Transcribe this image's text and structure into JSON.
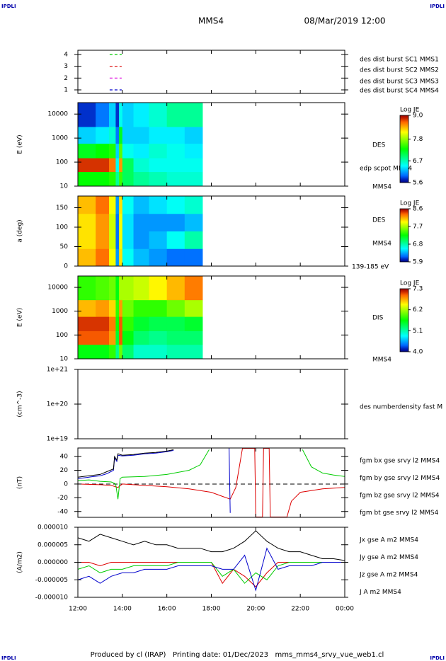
{
  "header": {
    "logo_left": "IPDLI",
    "logo_right": "IPDLI",
    "title": "MMS4",
    "date": "08/Mar/2019 12:00"
  },
  "footer": {
    "logo_left": "IPDLI",
    "logo_right": "IPDLI",
    "text": "Produced by cl (IRAP)   Printing date: 01/Dec/2023   mms_mms4_srvy_vue_web1.cl"
  },
  "chart_data": [
    {
      "type": "line",
      "xlim": [
        12,
        24
      ],
      "ylim": [
        0.7,
        4.36
      ],
      "yticks": [
        1,
        2,
        3,
        4
      ],
      "series": [
        {
          "name": "des dist burst SC1 MMS1",
          "color": "#0000cc",
          "x": [
            13.43,
            13.97
          ],
          "values": [
            1,
            1
          ]
        },
        {
          "name": "des dist burst SC2 MMS2",
          "color": "#dd00dd",
          "x": [
            13.43,
            13.97
          ],
          "values": [
            2,
            2
          ]
        },
        {
          "name": "des dist burst SC3 MMS3",
          "color": "#dd0000",
          "x": [
            13.43,
            13.97
          ],
          "values": [
            3,
            3
          ]
        },
        {
          "name": "des dist burst SC4 MMS4",
          "color": "#00cc00",
          "x": [
            13.43,
            13.97
          ],
          "values": [
            4,
            4
          ]
        }
      ]
    },
    {
      "type": "heatmap",
      "ylabel": "E (eV)",
      "log_y": true,
      "xlim": [
        12,
        24
      ],
      "ylim": [
        10,
        30000
      ],
      "yticks": [
        10,
        100,
        1000,
        10000
      ],
      "x_edges": [
        12,
        12.8,
        13.4,
        13.7,
        13.85,
        14.0,
        14.5,
        15.2,
        16.0,
        16.8,
        17.6
      ],
      "y_edges": [
        10,
        40,
        150,
        600,
        3000,
        30000
      ],
      "z": [
        [
          7.3,
          7.3,
          7.4,
          6.8,
          7.5,
          7.0,
          6.8,
          6.7,
          6.6,
          6.6
        ],
        [
          8.8,
          8.8,
          8.6,
          6.5,
          8.5,
          7.0,
          6.6,
          6.5,
          6.5,
          6.5
        ],
        [
          7.2,
          7.3,
          7.4,
          6.3,
          7.6,
          6.5,
          6.4,
          6.6,
          6.5,
          6.4
        ],
        [
          6.3,
          6.4,
          6.6,
          6.0,
          7.2,
          6.3,
          6.3,
          6.4,
          6.4,
          6.3
        ],
        [
          5.8,
          6.0,
          6.3,
          5.8,
          6.5,
          6.3,
          6.4,
          6.6,
          6.8,
          6.8
        ]
      ],
      "colorbar_title": "Log JE",
      "zlim": [
        5.6,
        9.0
      ],
      "zticks": [
        {
          "value": 9.0,
          "label": "9.0"
        },
        7.8,
        6.7,
        5.6
      ],
      "notes": [
        "DES",
        "edp scpot MMS4",
        "MMS4"
      ]
    },
    {
      "type": "heatmap",
      "ylabel": "a (deg)",
      "log_y": false,
      "xlim": [
        12,
        24
      ],
      "ylim": [
        0,
        180
      ],
      "yticks": [
        0,
        50,
        100,
        150
      ],
      "x_edges": [
        12,
        12.8,
        13.4,
        13.7,
        13.85,
        14.0,
        14.5,
        15.2,
        16.0,
        16.8,
        17.6
      ],
      "y_edges": [
        0,
        45,
        90,
        135,
        180
      ],
      "z": [
        [
          8.1,
          8.3,
          7.9,
          6.3,
          8.0,
          6.6,
          6.4,
          6.3,
          6.2,
          6.2
        ],
        [
          8.0,
          8.2,
          7.8,
          6.2,
          7.9,
          6.5,
          6.3,
          6.4,
          6.6,
          6.8
        ],
        [
          8.0,
          8.2,
          7.8,
          6.2,
          7.9,
          6.5,
          6.3,
          6.3,
          6.3,
          6.4
        ],
        [
          8.1,
          8.3,
          7.9,
          6.3,
          8.0,
          6.6,
          6.4,
          6.5,
          6.6,
          6.7
        ]
      ],
      "colorbar_title": "Log JE",
      "zlim": [
        5.9,
        8.6
      ],
      "zticks": [
        8.6,
        7.7,
        6.8,
        5.9
      ],
      "notes": [
        "DES",
        "MMS4",
        "139-185 eV"
      ]
    },
    {
      "type": "heatmap",
      "ylabel": "E (eV)",
      "log_y": true,
      "xlim": [
        12,
        24
      ],
      "ylim": [
        10,
        30000
      ],
      "yticks": [
        10,
        100,
        1000,
        10000
      ],
      "x_edges": [
        12,
        12.8,
        13.4,
        13.7,
        13.85,
        14.0,
        14.5,
        15.2,
        16.0,
        16.8,
        17.6
      ],
      "y_edges": [
        10,
        40,
        150,
        600,
        3000,
        30000
      ],
      "z": [
        [
          5.6,
          5.6,
          5.8,
          5.2,
          6.0,
          5.3,
          5.0,
          5.0,
          5.1,
          5.1
        ],
        [
          7.0,
          7.0,
          6.8,
          5.5,
          7.0,
          5.6,
          5.3,
          5.2,
          5.3,
          5.3
        ],
        [
          7.1,
          7.1,
          6.9,
          5.7,
          7.0,
          5.8,
          5.5,
          5.4,
          5.4,
          5.5
        ],
        [
          6.7,
          6.8,
          6.6,
          5.8,
          6.8,
          6.0,
          5.8,
          5.8,
          6.0,
          6.2
        ],
        [
          5.8,
          5.9,
          6.0,
          5.6,
          6.2,
          6.2,
          6.3,
          6.5,
          6.7,
          6.9
        ]
      ],
      "colorbar_title": "Log JE",
      "zlim": [
        4.0,
        7.3
      ],
      "zticks": [
        7.3,
        6.2,
        5.1,
        {
          "value": 4.0,
          "label": "4.0"
        }
      ],
      "notes": [
        "DIS",
        "MMS4"
      ]
    },
    {
      "type": "line",
      "ylabel": "(cm^-3)",
      "log_y": true,
      "xlim": [
        12,
        24
      ],
      "ylim": [
        1e+19,
        1e+21
      ],
      "yticks": [
        {
          "value": 1e+19,
          "label": "1e+19"
        },
        {
          "value": 1e+20,
          "label": "1e+20"
        },
        {
          "value": 1e+21,
          "label": "1e+21"
        }
      ],
      "notes": [
        "des numberdensity fast M"
      ]
    },
    {
      "type": "line",
      "ylabel": "(nT)",
      "xlim": [
        12,
        24
      ],
      "ylim": [
        -48.5,
        52.5
      ],
      "yticks": [
        -40,
        -20,
        0,
        20,
        40
      ],
      "zero_line": true,
      "series": [
        {
          "name": "fgm bx gse srvy l2 MMS4",
          "color": "#dd0000",
          "x": [
            12,
            13,
            13.5,
            13.8,
            14,
            15,
            16,
            17,
            18,
            18.5,
            18.85,
            19.1,
            19.4,
            19.95,
            20.0,
            20.3,
            20.35,
            20.6,
            20.65,
            21.4,
            21.6,
            22,
            23,
            24
          ],
          "values": [
            0,
            -1,
            -2,
            -5,
            0,
            -2,
            -4,
            -7,
            -12,
            -18,
            -22,
            -5,
            52,
            52,
            -48,
            -48,
            52,
            52,
            -48,
            -48,
            -25,
            -12,
            -7,
            -5
          ]
        },
        {
          "name": "fgm by gse srvy l2 MMS4",
          "color": "#00cc00",
          "x": [
            12,
            12.5,
            13,
            13.5,
            13.7,
            13.8,
            13.9,
            14,
            15,
            16,
            17,
            17.5,
            17.9,
            18.1,
            22.1,
            22.5,
            23,
            23.5,
            24
          ],
          "values": [
            5,
            6,
            4,
            3,
            0,
            -22,
            8,
            10,
            11,
            14,
            20,
            28,
            50,
            null,
            50,
            25,
            16,
            13,
            11
          ]
        },
        {
          "name": "fgm bz gse srvy l2 MMS4",
          "color": "#0000cc",
          "x": [
            12,
            12.5,
            13,
            13.3,
            13.6,
            13.65,
            13.75,
            13.8,
            14,
            14.5,
            15,
            15.5,
            16,
            16.3,
            17,
            18.8,
            18.85
          ],
          "values": [
            8,
            10,
            12,
            15,
            20,
            38,
            33,
            42,
            41,
            42,
            44,
            45,
            47,
            49,
            null,
            52,
            -42
          ]
        },
        {
          "name": "fgm bt gse srvy l2 MMS4",
          "color": "#000000",
          "x": [
            12,
            12.5,
            13,
            13.3,
            13.6,
            13.65,
            13.75,
            13.8,
            14,
            14.5,
            15,
            15.5,
            16,
            16.3
          ],
          "values": [
            10,
            12,
            14,
            18,
            22,
            40,
            35,
            44,
            42,
            43,
            45,
            46,
            48,
            50
          ]
        }
      ]
    },
    {
      "type": "line",
      "ylabel": "(A/m2)",
      "xlim": [
        12,
        24
      ],
      "ylim": [
        -1e-05,
        1e-05
      ],
      "yticks": [
        {
          "value": -1e-05,
          "label": "-0.000010"
        },
        {
          "value": -5e-06,
          "label": "-0.000005"
        },
        {
          "value": 0,
          "label": "0.000000"
        },
        {
          "value": 5e-06,
          "label": "0.000005"
        },
        {
          "value": 1e-05,
          "label": "0.000010"
        }
      ],
      "xticks": [
        {
          "value": 12,
          "label": "12:00"
        },
        {
          "value": 14,
          "label": "14:00"
        },
        {
          "value": 16,
          "label": "16:00"
        },
        {
          "value": 18,
          "label": "18:00"
        },
        {
          "value": 20,
          "label": "20:00"
        },
        {
          "value": 22,
          "label": "22:00"
        },
        {
          "value": 24,
          "label": "00:00"
        }
      ],
      "series": [
        {
          "name": "Jx gse A m2 MMS4",
          "color": "#dd0000",
          "x": [
            12,
            12.5,
            13,
            13.5,
            14,
            14.5,
            15,
            15.5,
            16,
            16.5,
            17,
            17.5,
            18,
            18.5,
            19,
            19.5,
            20,
            20.5,
            21,
            21.5,
            22,
            22.5,
            23,
            23.5,
            24
          ],
          "values": [
            0,
            0,
            -1e-06,
            0,
            0,
            0,
            0,
            0,
            0,
            0,
            0,
            0,
            0,
            -6e-06,
            -2e-06,
            -4e-06,
            -7e-06,
            -3e-06,
            0,
            0,
            0,
            0,
            0,
            0,
            0
          ]
        },
        {
          "name": "Jy gse A m2 MMS4",
          "color": "#00cc00",
          "x": [
            12,
            12.5,
            13,
            13.5,
            14,
            14.5,
            15,
            15.5,
            16,
            16.5,
            17,
            17.5,
            18,
            18.5,
            19,
            19.5,
            20,
            20.5,
            21,
            21.5,
            22,
            22.5,
            23,
            23.5,
            24
          ],
          "values": [
            -2e-06,
            -1e-06,
            -3e-06,
            -2e-06,
            -2e-06,
            -1e-06,
            -1e-06,
            -1e-06,
            -1e-06,
            0,
            0,
            0,
            0,
            -4e-06,
            -2e-06,
            -6e-06,
            -3e-06,
            -5e-06,
            -1e-06,
            0,
            0,
            0,
            0,
            0,
            0
          ]
        },
        {
          "name": "Jz gse A m2 MMS4",
          "color": "#0000cc",
          "x": [
            12,
            12.5,
            13,
            13.5,
            14,
            14.5,
            15,
            15.5,
            16,
            16.5,
            17,
            17.5,
            18,
            18.5,
            19,
            19.5,
            20,
            20.5,
            21,
            21.5,
            22,
            22.5,
            23,
            23.5,
            24
          ],
          "values": [
            -5e-06,
            -4e-06,
            -6e-06,
            -4e-06,
            -3e-06,
            -3e-06,
            -2e-06,
            -2e-06,
            -2e-06,
            -1e-06,
            -1e-06,
            -1e-06,
            -1e-06,
            -2e-06,
            -2e-06,
            2e-06,
            -8e-06,
            4e-06,
            -2e-06,
            -1e-06,
            -1e-06,
            -1e-06,
            0,
            0,
            0
          ]
        },
        {
          "name": "J A m2 MMS4",
          "color": "#000000",
          "x": [
            12,
            12.5,
            13,
            13.5,
            14,
            14.5,
            15,
            15.5,
            16,
            16.5,
            17,
            17.5,
            18,
            18.5,
            19,
            19.5,
            20,
            20.5,
            21,
            21.5,
            22,
            22.5,
            23,
            23.5,
            24
          ],
          "values": [
            7e-06,
            6e-06,
            8e-06,
            7e-06,
            6e-06,
            5e-06,
            6e-06,
            5e-06,
            5e-06,
            4e-06,
            4e-06,
            4e-06,
            3e-06,
            3e-06,
            4e-06,
            6e-06,
            9e-06,
            6e-06,
            4e-06,
            3e-06,
            3e-06,
            2e-06,
            1e-06,
            1e-06,
            5e-07
          ]
        }
      ]
    }
  ]
}
